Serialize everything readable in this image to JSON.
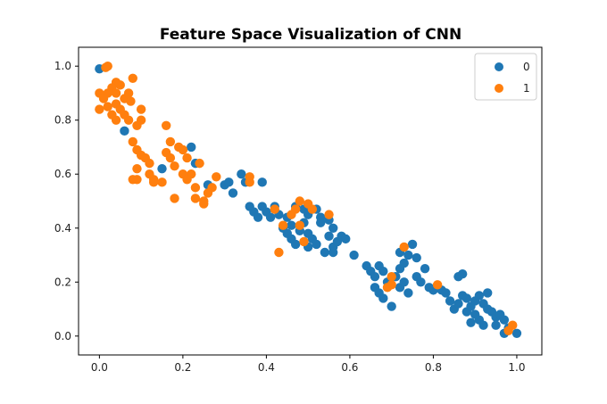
{
  "chart_data": {
    "type": "scatter",
    "title": "Feature Space Visualization of CNN",
    "xlabel": "",
    "ylabel": "",
    "xlim": [
      -0.05,
      1.06
    ],
    "ylim": [
      -0.07,
      1.07
    ],
    "xticks": [
      "0.0",
      "0.2",
      "0.4",
      "0.6",
      "0.8",
      "1.0"
    ],
    "yticks": [
      "0.0",
      "0.2",
      "0.4",
      "0.6",
      "0.8",
      "1.0"
    ],
    "grid": false,
    "legend": "top-right",
    "series": [
      {
        "name": "0",
        "color": "#1f77b4",
        "points": [
          [
            0.0,
            0.99
          ],
          [
            0.06,
            0.76
          ],
          [
            0.15,
            0.62
          ],
          [
            0.22,
            0.7
          ],
          [
            0.23,
            0.64
          ],
          [
            0.26,
            0.56
          ],
          [
            0.3,
            0.56
          ],
          [
            0.32,
            0.53
          ],
          [
            0.31,
            0.57
          ],
          [
            0.34,
            0.6
          ],
          [
            0.35,
            0.57
          ],
          [
            0.39,
            0.57
          ],
          [
            0.36,
            0.48
          ],
          [
            0.37,
            0.46
          ],
          [
            0.38,
            0.44
          ],
          [
            0.39,
            0.48
          ],
          [
            0.4,
            0.46
          ],
          [
            0.41,
            0.44
          ],
          [
            0.42,
            0.48
          ],
          [
            0.43,
            0.45
          ],
          [
            0.45,
            0.44
          ],
          [
            0.47,
            0.48
          ],
          [
            0.49,
            0.47
          ],
          [
            0.5,
            0.45
          ],
          [
            0.52,
            0.47
          ],
          [
            0.53,
            0.44
          ],
          [
            0.55,
            0.43
          ],
          [
            0.44,
            0.4
          ],
          [
            0.45,
            0.38
          ],
          [
            0.46,
            0.36
          ],
          [
            0.46,
            0.41
          ],
          [
            0.48,
            0.39
          ],
          [
            0.49,
            0.42
          ],
          [
            0.5,
            0.38
          ],
          [
            0.51,
            0.36
          ],
          [
            0.47,
            0.34
          ],
          [
            0.5,
            0.33
          ],
          [
            0.52,
            0.34
          ],
          [
            0.53,
            0.42
          ],
          [
            0.56,
            0.4
          ],
          [
            0.55,
            0.37
          ],
          [
            0.56,
            0.33
          ],
          [
            0.57,
            0.35
          ],
          [
            0.58,
            0.37
          ],
          [
            0.59,
            0.36
          ],
          [
            0.56,
            0.31
          ],
          [
            0.54,
            0.31
          ],
          [
            0.61,
            0.3
          ],
          [
            0.64,
            0.26
          ],
          [
            0.65,
            0.24
          ],
          [
            0.66,
            0.22
          ],
          [
            0.67,
            0.26
          ],
          [
            0.68,
            0.24
          ],
          [
            0.66,
            0.18
          ],
          [
            0.67,
            0.16
          ],
          [
            0.68,
            0.14
          ],
          [
            0.7,
            0.11
          ],
          [
            0.69,
            0.2
          ],
          [
            0.71,
            0.22
          ],
          [
            0.72,
            0.25
          ],
          [
            0.73,
            0.27
          ],
          [
            0.74,
            0.3
          ],
          [
            0.72,
            0.31
          ],
          [
            0.75,
            0.34
          ],
          [
            0.76,
            0.29
          ],
          [
            0.76,
            0.22
          ],
          [
            0.72,
            0.18
          ],
          [
            0.73,
            0.2
          ],
          [
            0.74,
            0.16
          ],
          [
            0.77,
            0.2
          ],
          [
            0.78,
            0.25
          ],
          [
            0.79,
            0.18
          ],
          [
            0.8,
            0.17
          ],
          [
            0.82,
            0.17
          ],
          [
            0.83,
            0.16
          ],
          [
            0.84,
            0.13
          ],
          [
            0.85,
            0.1
          ],
          [
            0.86,
            0.12
          ],
          [
            0.87,
            0.15
          ],
          [
            0.86,
            0.22
          ],
          [
            0.87,
            0.23
          ],
          [
            0.88,
            0.14
          ],
          [
            0.88,
            0.09
          ],
          [
            0.89,
            0.11
          ],
          [
            0.9,
            0.13
          ],
          [
            0.91,
            0.15
          ],
          [
            0.92,
            0.12
          ],
          [
            0.93,
            0.1
          ],
          [
            0.91,
            0.06
          ],
          [
            0.9,
            0.08
          ],
          [
            0.94,
            0.09
          ],
          [
            0.95,
            0.07
          ],
          [
            0.96,
            0.08
          ],
          [
            0.97,
            0.06
          ],
          [
            0.95,
            0.04
          ],
          [
            0.98,
            0.03
          ],
          [
            0.97,
            0.01
          ],
          [
            1.0,
            0.01
          ],
          [
            0.92,
            0.04
          ],
          [
            0.89,
            0.05
          ],
          [
            0.93,
            0.16
          ]
        ]
      },
      {
        "name": "1",
        "color": "#ff7f0e",
        "points": [
          [
            0.015,
            0.995
          ],
          [
            0.02,
            1.0
          ],
          [
            0.08,
            0.955
          ],
          [
            0.05,
            0.93
          ],
          [
            0.04,
            0.94
          ],
          [
            0.03,
            0.92
          ],
          [
            0.02,
            0.9
          ],
          [
            0.0,
            0.9
          ],
          [
            0.01,
            0.88
          ],
          [
            0.04,
            0.9
          ],
          [
            0.06,
            0.88
          ],
          [
            0.07,
            0.9
          ],
          [
            0.075,
            0.87
          ],
          [
            0.0,
            0.84
          ],
          [
            0.02,
            0.85
          ],
          [
            0.04,
            0.86
          ],
          [
            0.05,
            0.84
          ],
          [
            0.03,
            0.82
          ],
          [
            0.06,
            0.82
          ],
          [
            0.1,
            0.84
          ],
          [
            0.1,
            0.8
          ],
          [
            0.07,
            0.8
          ],
          [
            0.04,
            0.8
          ],
          [
            0.09,
            0.78
          ],
          [
            0.16,
            0.78
          ],
          [
            0.08,
            0.72
          ],
          [
            0.09,
            0.69
          ],
          [
            0.1,
            0.67
          ],
          [
            0.11,
            0.66
          ],
          [
            0.12,
            0.64
          ],
          [
            0.09,
            0.62
          ],
          [
            0.09,
            0.58
          ],
          [
            0.08,
            0.58
          ],
          [
            0.12,
            0.6
          ],
          [
            0.13,
            0.58
          ],
          [
            0.13,
            0.57
          ],
          [
            0.15,
            0.57
          ],
          [
            0.16,
            0.68
          ],
          [
            0.17,
            0.66
          ],
          [
            0.17,
            0.72
          ],
          [
            0.19,
            0.7
          ],
          [
            0.2,
            0.69
          ],
          [
            0.21,
            0.66
          ],
          [
            0.18,
            0.63
          ],
          [
            0.2,
            0.6
          ],
          [
            0.22,
            0.6
          ],
          [
            0.24,
            0.64
          ],
          [
            0.21,
            0.58
          ],
          [
            0.23,
            0.55
          ],
          [
            0.18,
            0.51
          ],
          [
            0.23,
            0.51
          ],
          [
            0.25,
            0.5
          ],
          [
            0.27,
            0.55
          ],
          [
            0.28,
            0.59
          ],
          [
            0.26,
            0.53
          ],
          [
            0.25,
            0.49
          ],
          [
            0.36,
            0.59
          ],
          [
            0.36,
            0.57
          ],
          [
            0.42,
            0.47
          ],
          [
            0.44,
            0.41
          ],
          [
            0.48,
            0.5
          ],
          [
            0.47,
            0.47
          ],
          [
            0.46,
            0.45
          ],
          [
            0.5,
            0.49
          ],
          [
            0.51,
            0.47
          ],
          [
            0.55,
            0.45
          ],
          [
            0.43,
            0.31
          ],
          [
            0.49,
            0.35
          ],
          [
            0.48,
            0.41
          ],
          [
            0.73,
            0.33
          ],
          [
            0.7,
            0.22
          ],
          [
            0.7,
            0.19
          ],
          [
            0.69,
            0.18
          ],
          [
            0.81,
            0.19
          ],
          [
            0.99,
            0.04
          ],
          [
            0.98,
            0.02
          ]
        ]
      }
    ]
  }
}
